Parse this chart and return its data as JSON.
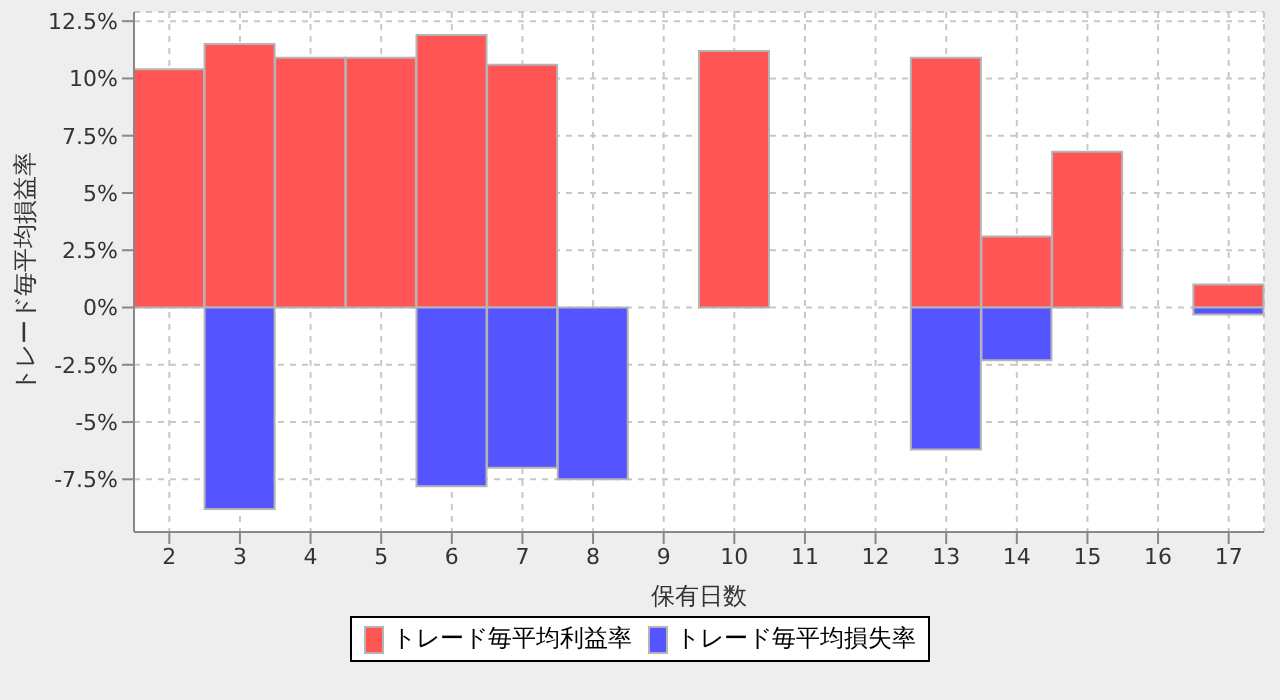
{
  "chart_data": {
    "type": "bar",
    "xlabel": "保有日数",
    "ylabel": "トレード毎平均損益率",
    "categories": [
      "2",
      "3",
      "4",
      "5",
      "6",
      "7",
      "8",
      "9",
      "10",
      "11",
      "12",
      "13",
      "14",
      "15",
      "16",
      "17"
    ],
    "series": [
      {
        "name": "トレード毎平均利益率",
        "color": "#ff5555",
        "values": [
          10.4,
          11.5,
          10.9,
          10.9,
          11.9,
          10.6,
          null,
          null,
          11.2,
          null,
          null,
          10.9,
          3.1,
          6.8,
          null,
          1.0
        ]
      },
      {
        "name": "トレード毎平均損失率",
        "color": "#5555ff",
        "values": [
          null,
          -8.8,
          null,
          null,
          -7.8,
          -7.0,
          -7.5,
          null,
          null,
          null,
          null,
          -6.2,
          -2.3,
          null,
          null,
          -0.3
        ]
      }
    ],
    "ylim": [
      -9.8,
      12.9
    ],
    "yticks": [
      {
        "value": -7.5,
        "label": "-7.5%"
      },
      {
        "value": -5,
        "label": "-5%"
      },
      {
        "value": -2.5,
        "label": "-2.5%"
      },
      {
        "value": 0,
        "label": "0%"
      },
      {
        "value": 2.5,
        "label": "2.5%"
      },
      {
        "value": 5,
        "label": "5%"
      },
      {
        "value": 7.5,
        "label": "7.5%"
      },
      {
        "value": 10,
        "label": "10%"
      },
      {
        "value": 12.5,
        "label": "12.5%"
      }
    ],
    "grid": true,
    "legend": "bottom"
  }
}
